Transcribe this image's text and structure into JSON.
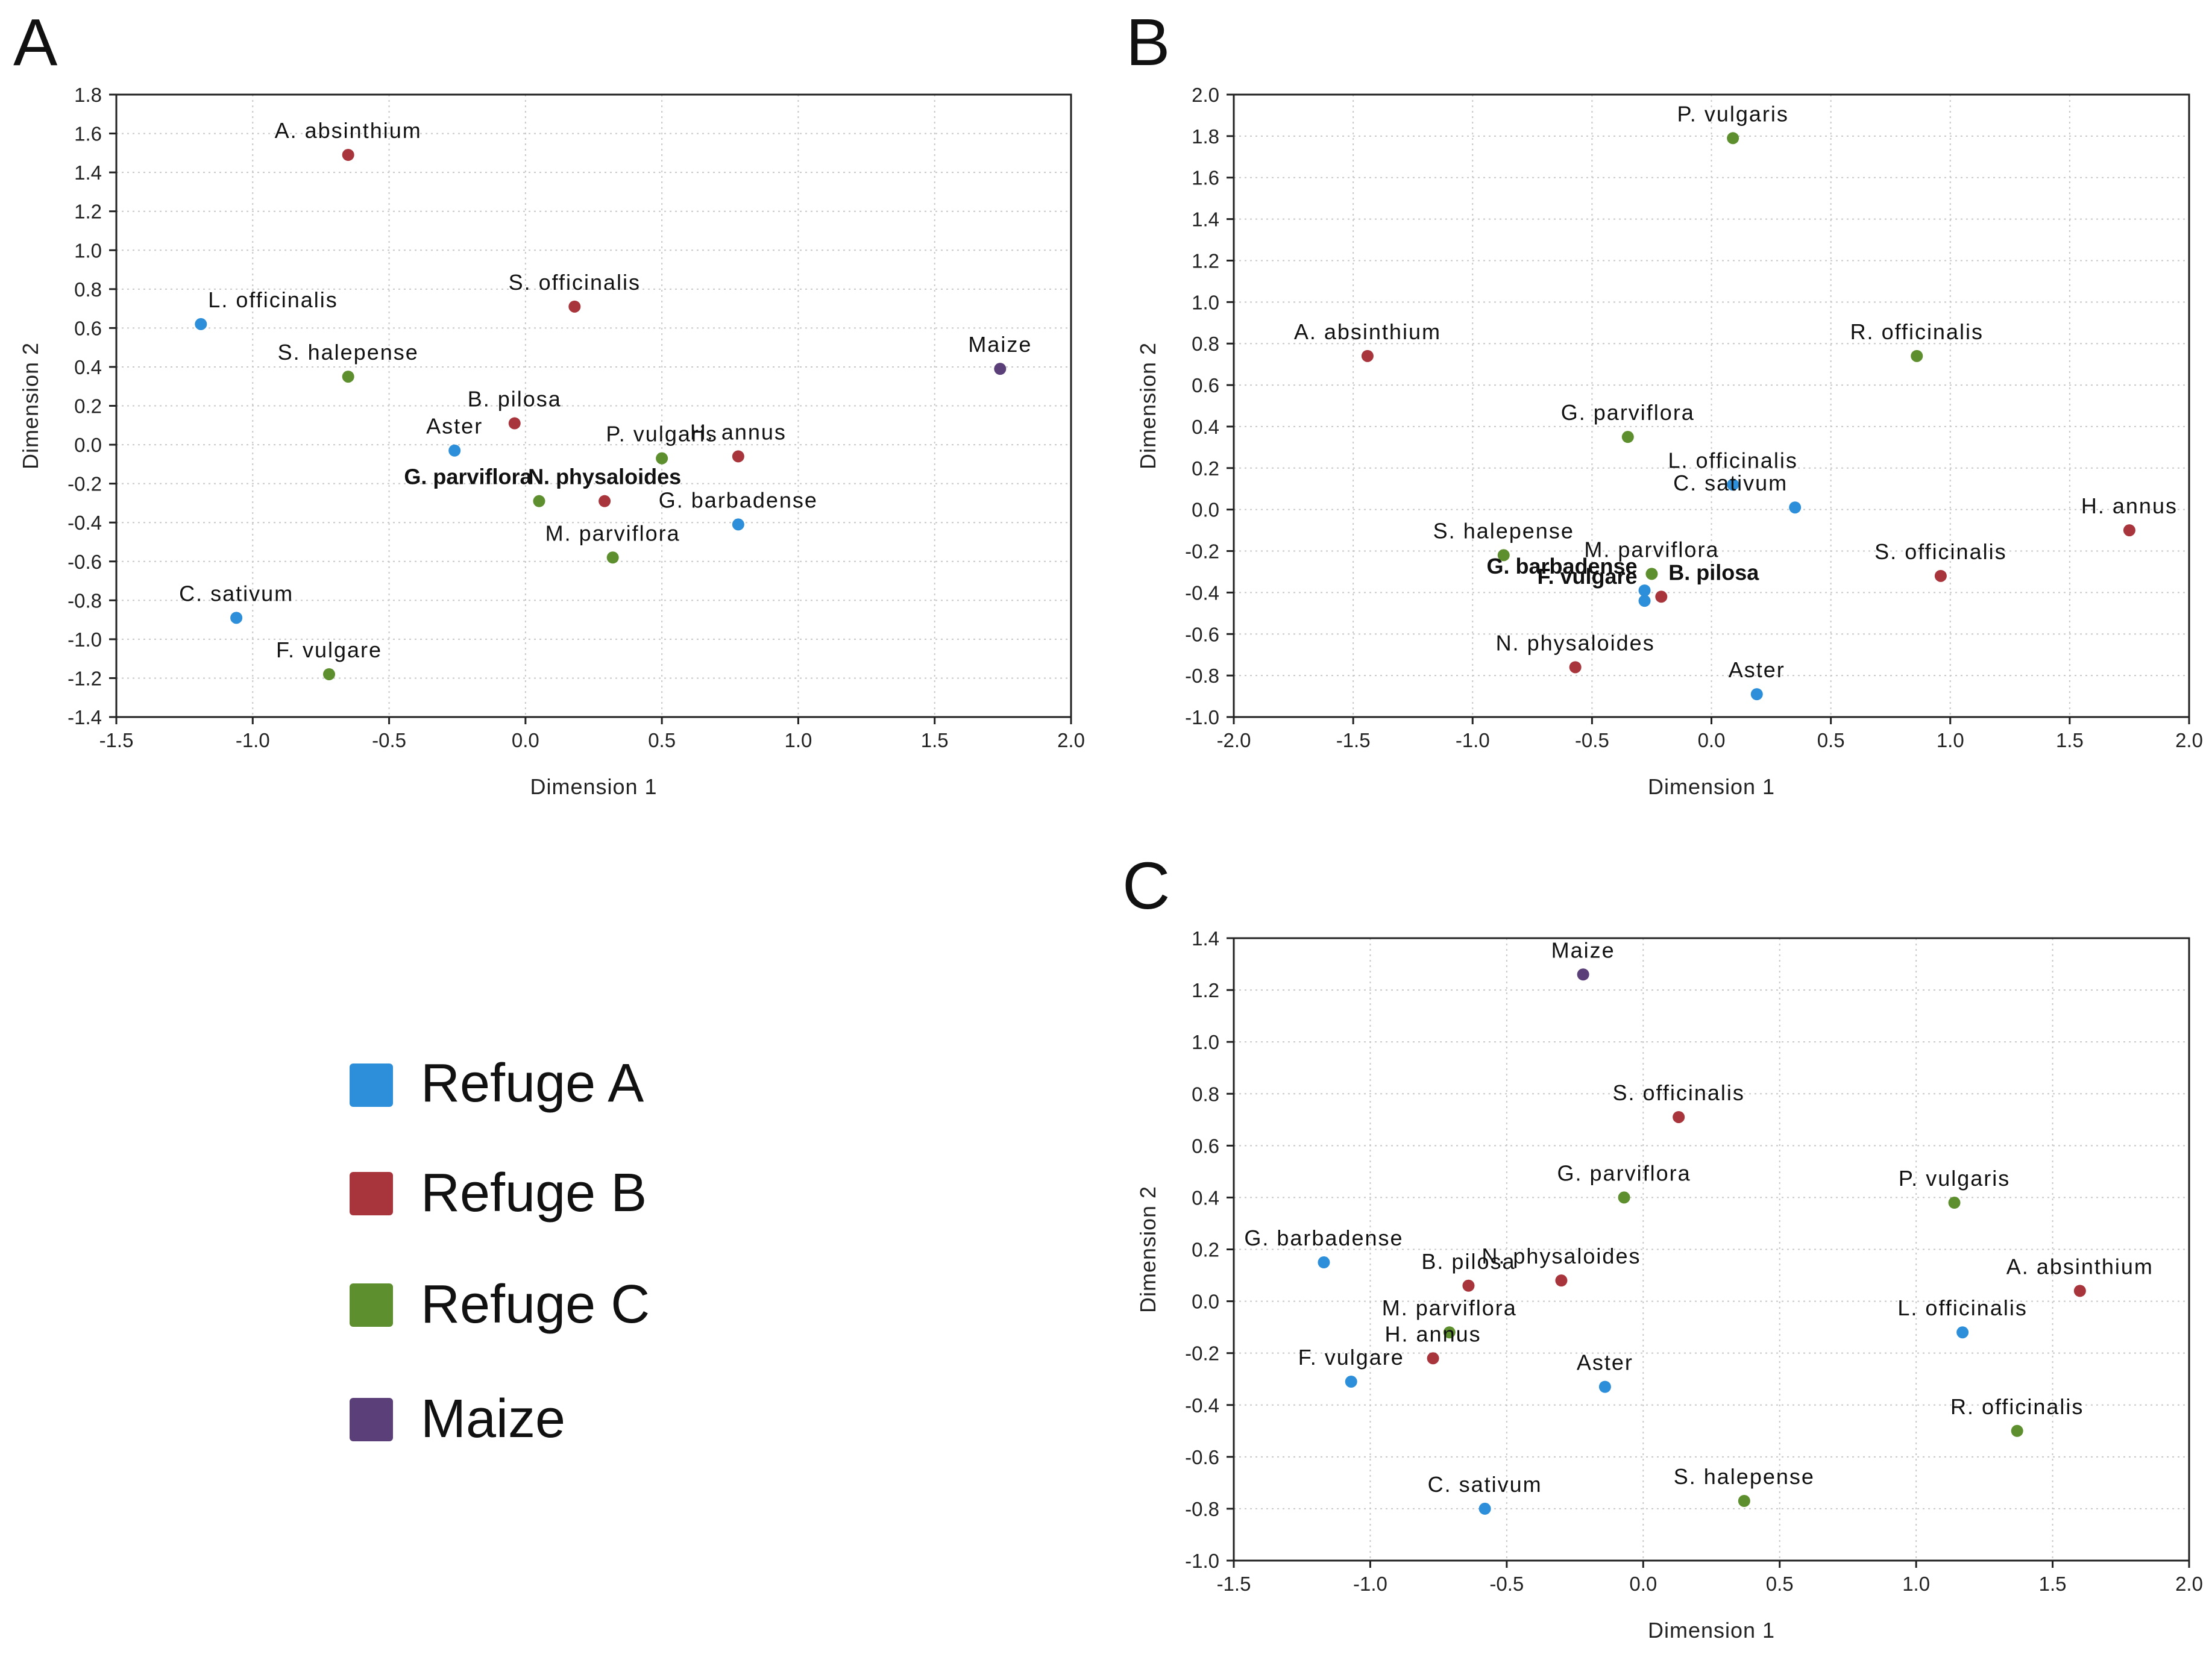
{
  "colors": {
    "refuge_a": "#2d8fd9",
    "refuge_b": "#a8343c",
    "refuge_c": "#5e8f2e",
    "maize": "#5b3f78"
  },
  "legend": {
    "items": [
      {
        "label": "Refuge A",
        "color": "#2d8fd9"
      },
      {
        "label": "Refuge B",
        "color": "#a8343c"
      },
      {
        "label": "Refuge C",
        "color": "#5e8f2e"
      },
      {
        "label": "Maize",
        "color": "#5b3f78"
      }
    ]
  },
  "chart_data": [
    {
      "panel": "A",
      "type": "scatter",
      "xlabel": "Dimension 1",
      "ylabel": "Dimension 2",
      "xlim": [
        -1.5,
        2.0
      ],
      "ylim": [
        -1.4,
        1.8
      ],
      "xticks": [
        -1.5,
        -1.0,
        -0.5,
        0.0,
        0.5,
        1.0,
        1.5,
        2.0
      ],
      "yticks": [
        -1.4,
        -1.2,
        -1.0,
        -0.8,
        -0.6,
        -0.4,
        -0.2,
        0.0,
        0.2,
        0.4,
        0.6,
        0.8,
        1.0,
        1.2,
        1.4,
        1.6,
        1.8
      ],
      "grid": true,
      "points": [
        {
          "label": "A. absinthium",
          "x": -0.65,
          "y": 1.49,
          "group": "refuge_b",
          "anchor": "middle",
          "bold": false
        },
        {
          "label": "L. officinalis",
          "x": -1.19,
          "y": 0.62,
          "group": "refuge_a",
          "anchor": "start",
          "bold": false
        },
        {
          "label": "S. officinalis",
          "x": 0.18,
          "y": 0.71,
          "group": "refuge_b",
          "anchor": "middle",
          "bold": false
        },
        {
          "label": "S. halepense",
          "x": -0.65,
          "y": 0.35,
          "group": "refuge_c",
          "anchor": "middle",
          "bold": false
        },
        {
          "label": "Maize",
          "x": 1.74,
          "y": 0.39,
          "group": "maize",
          "anchor": "middle",
          "bold": false
        },
        {
          "label": "B. pilosa",
          "x": -0.04,
          "y": 0.11,
          "group": "refuge_b",
          "anchor": "middle",
          "bold": false
        },
        {
          "label": "Aster",
          "x": -0.26,
          "y": -0.03,
          "group": "refuge_a",
          "anchor": "middle",
          "bold": false
        },
        {
          "label": "P. vulgaris",
          "x": 0.5,
          "y": -0.07,
          "group": "refuge_c",
          "anchor": "middle",
          "bold": false
        },
        {
          "label": "H. annus",
          "x": 0.78,
          "y": -0.06,
          "group": "refuge_b",
          "anchor": "middle",
          "bold": false
        },
        {
          "label": "N. physaloides",
          "x": 0.29,
          "y": -0.29,
          "group": "refuge_b",
          "anchor": "middle",
          "bold": true
        },
        {
          "label": "G. parviflora",
          "x": 0.05,
          "y": -0.29,
          "group": "refuge_c",
          "anchor": "end",
          "bold": true
        },
        {
          "label": "G. barbadense",
          "x": 0.78,
          "y": -0.41,
          "group": "refuge_a",
          "anchor": "middle",
          "bold": false
        },
        {
          "label": "M. parviflora",
          "x": 0.32,
          "y": -0.58,
          "group": "refuge_c",
          "anchor": "middle",
          "bold": false
        },
        {
          "label": "C. sativum",
          "x": -1.06,
          "y": -0.89,
          "group": "refuge_a",
          "anchor": "middle",
          "bold": false
        },
        {
          "label": "F. vulgare",
          "x": -0.72,
          "y": -1.18,
          "group": "refuge_c",
          "anchor": "middle",
          "bold": false
        }
      ]
    },
    {
      "panel": "B",
      "type": "scatter",
      "xlabel": "Dimension 1",
      "ylabel": "Dimension 2",
      "xlim": [
        -2.0,
        2.0
      ],
      "ylim": [
        -1.0,
        2.0
      ],
      "xticks": [
        -2.0,
        -1.5,
        -1.0,
        -0.5,
        0.0,
        0.5,
        1.0,
        1.5,
        2.0
      ],
      "yticks": [
        -1.0,
        -0.8,
        -0.6,
        -0.4,
        -0.2,
        0.0,
        0.2,
        0.4,
        0.6,
        0.8,
        1.0,
        1.2,
        1.4,
        1.6,
        1.8,
        2.0
      ],
      "grid": true,
      "points": [
        {
          "label": "P. vulgaris",
          "x": 0.09,
          "y": 1.79,
          "group": "refuge_c",
          "anchor": "middle",
          "bold": false
        },
        {
          "label": "A. absinthium",
          "x": -1.44,
          "y": 0.74,
          "group": "refuge_b",
          "anchor": "middle",
          "bold": false
        },
        {
          "label": "R. officinalis",
          "x": 0.86,
          "y": 0.74,
          "group": "refuge_c",
          "anchor": "middle",
          "bold": false
        },
        {
          "label": "G. parviflora",
          "x": -0.35,
          "y": 0.35,
          "group": "refuge_c",
          "anchor": "middle",
          "bold": false
        },
        {
          "label": "L. officinalis",
          "x": 0.09,
          "y": 0.12,
          "group": "refuge_a",
          "anchor": "middle",
          "bold": false
        },
        {
          "label": "C. sativum",
          "x": 0.35,
          "y": 0.01,
          "group": "refuge_a",
          "anchor": "end",
          "bold": false
        },
        {
          "label": "H. annus",
          "x": 1.75,
          "y": -0.1,
          "group": "refuge_b",
          "anchor": "middle",
          "bold": false
        },
        {
          "label": "S. halepense",
          "x": -0.87,
          "y": -0.22,
          "group": "refuge_c",
          "anchor": "middle",
          "bold": false
        },
        {
          "label": "M. parviflora",
          "x": -0.25,
          "y": -0.31,
          "group": "refuge_c",
          "anchor": "middle",
          "bold": false
        },
        {
          "label": "S. officinalis",
          "x": 0.96,
          "y": -0.32,
          "group": "refuge_b",
          "anchor": "middle",
          "bold": false
        },
        {
          "label": "G. barbadense",
          "x": -0.28,
          "y": -0.39,
          "group": "refuge_a",
          "anchor": "end",
          "bold": true
        },
        {
          "label": "B. pilosa",
          "x": -0.21,
          "y": -0.42,
          "group": "refuge_b",
          "anchor": "start",
          "bold": true
        },
        {
          "label": "F. vulgare",
          "x": -0.28,
          "y": -0.44,
          "group": "refuge_a",
          "anchor": "end",
          "bold": true
        },
        {
          "label": "N. physaloides",
          "x": -0.57,
          "y": -0.76,
          "group": "refuge_b",
          "anchor": "middle",
          "bold": false
        },
        {
          "label": "Aster",
          "x": 0.19,
          "y": -0.89,
          "group": "refuge_a",
          "anchor": "middle",
          "bold": false
        }
      ]
    },
    {
      "panel": "C",
      "type": "scatter",
      "xlabel": "Dimension 1",
      "ylabel": "Dimension 2",
      "xlim": [
        -1.5,
        2.0
      ],
      "ylim": [
        -1.0,
        1.4
      ],
      "xticks": [
        -1.5,
        -1.0,
        -0.5,
        0.0,
        0.5,
        1.0,
        1.5,
        2.0
      ],
      "yticks": [
        -1.0,
        -0.8,
        -0.6,
        -0.4,
        -0.2,
        0.0,
        0.2,
        0.4,
        0.6,
        0.8,
        1.0,
        1.2,
        1.4
      ],
      "grid": true,
      "points": [
        {
          "label": "Maize",
          "x": -0.22,
          "y": 1.26,
          "group": "maize",
          "anchor": "middle",
          "bold": false
        },
        {
          "label": "S. officinalis",
          "x": 0.13,
          "y": 0.71,
          "group": "refuge_b",
          "anchor": "middle",
          "bold": false
        },
        {
          "label": "G. parviflora",
          "x": -0.07,
          "y": 0.4,
          "group": "refuge_c",
          "anchor": "middle",
          "bold": false
        },
        {
          "label": "P. vulgaris",
          "x": 1.14,
          "y": 0.38,
          "group": "refuge_c",
          "anchor": "middle",
          "bold": false
        },
        {
          "label": "G. barbadense",
          "x": -1.17,
          "y": 0.15,
          "group": "refuge_a",
          "anchor": "middle",
          "bold": false
        },
        {
          "label": "B. pilosa",
          "x": -0.64,
          "y": 0.06,
          "group": "refuge_b",
          "anchor": "middle",
          "bold": false
        },
        {
          "label": "N. physaloides",
          "x": -0.3,
          "y": 0.08,
          "group": "refuge_b",
          "anchor": "middle",
          "bold": false
        },
        {
          "label": "A. absinthium",
          "x": 1.6,
          "y": 0.04,
          "group": "refuge_b",
          "anchor": "middle",
          "bold": false
        },
        {
          "label": "M. parviflora",
          "x": -0.71,
          "y": -0.12,
          "group": "refuge_c",
          "anchor": "middle",
          "bold": false
        },
        {
          "label": "L. officinalis",
          "x": 1.17,
          "y": -0.12,
          "group": "refuge_a",
          "anchor": "middle",
          "bold": false
        },
        {
          "label": "H. annus",
          "x": -0.77,
          "y": -0.22,
          "group": "refuge_b",
          "anchor": "middle",
          "bold": false
        },
        {
          "label": "F. vulgare",
          "x": -1.07,
          "y": -0.31,
          "group": "refuge_a",
          "anchor": "middle",
          "bold": false
        },
        {
          "label": "Aster",
          "x": -0.14,
          "y": -0.33,
          "group": "refuge_a",
          "anchor": "middle",
          "bold": false
        },
        {
          "label": "R. officinalis",
          "x": 1.37,
          "y": -0.5,
          "group": "refuge_c",
          "anchor": "middle",
          "bold": false
        },
        {
          "label": "C. sativum",
          "x": -0.58,
          "y": -0.8,
          "group": "refuge_a",
          "anchor": "middle",
          "bold": false
        },
        {
          "label": "S. halepense",
          "x": 0.37,
          "y": -0.77,
          "group": "refuge_c",
          "anchor": "middle",
          "bold": false
        }
      ]
    }
  ]
}
